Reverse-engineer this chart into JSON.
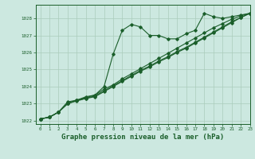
{
  "bg_color": "#cce8e0",
  "grid_color": "#aaccbb",
  "line_color": "#1a5e2a",
  "title": "Graphe pression niveau de la mer (hPa)",
  "title_fontsize": 6.5,
  "xlim": [
    -0.5,
    23
  ],
  "ylim": [
    1021.8,
    1028.8
  ],
  "yticks": [
    1022,
    1023,
    1024,
    1025,
    1026,
    1027,
    1028
  ],
  "xticks": [
    0,
    1,
    2,
    3,
    4,
    5,
    6,
    7,
    8,
    9,
    10,
    11,
    12,
    13,
    14,
    15,
    16,
    17,
    18,
    19,
    20,
    21,
    22,
    23
  ],
  "series": [
    [
      1022.1,
      1022.2,
      1022.5,
      1023.1,
      1023.2,
      1023.4,
      1023.5,
      1024.0,
      1025.9,
      1027.3,
      1027.65,
      1027.5,
      1027.0,
      1027.0,
      1026.8,
      1026.8,
      1027.1,
      1027.3,
      1028.3,
      1028.1,
      1028.0,
      1028.1,
      1028.2,
      1028.3
    ],
    [
      1022.1,
      1022.2,
      1022.5,
      1023.0,
      1023.2,
      1023.35,
      1023.5,
      1023.85,
      1024.1,
      1024.45,
      1024.75,
      1025.05,
      1025.35,
      1025.65,
      1025.95,
      1026.25,
      1026.55,
      1026.85,
      1027.15,
      1027.45,
      1027.7,
      1027.95,
      1028.15,
      1028.3
    ],
    [
      1022.1,
      1022.2,
      1022.5,
      1023.0,
      1023.2,
      1023.3,
      1023.45,
      1023.75,
      1024.05,
      1024.35,
      1024.65,
      1024.95,
      1025.2,
      1025.5,
      1025.75,
      1026.05,
      1026.3,
      1026.6,
      1026.9,
      1027.2,
      1027.5,
      1027.8,
      1028.05,
      1028.3
    ],
    [
      1022.1,
      1022.2,
      1022.5,
      1023.0,
      1023.15,
      1023.3,
      1023.4,
      1023.7,
      1024.0,
      1024.3,
      1024.6,
      1024.9,
      1025.15,
      1025.45,
      1025.7,
      1026.0,
      1026.25,
      1026.55,
      1026.85,
      1027.15,
      1027.45,
      1027.75,
      1028.05,
      1028.3
    ]
  ]
}
